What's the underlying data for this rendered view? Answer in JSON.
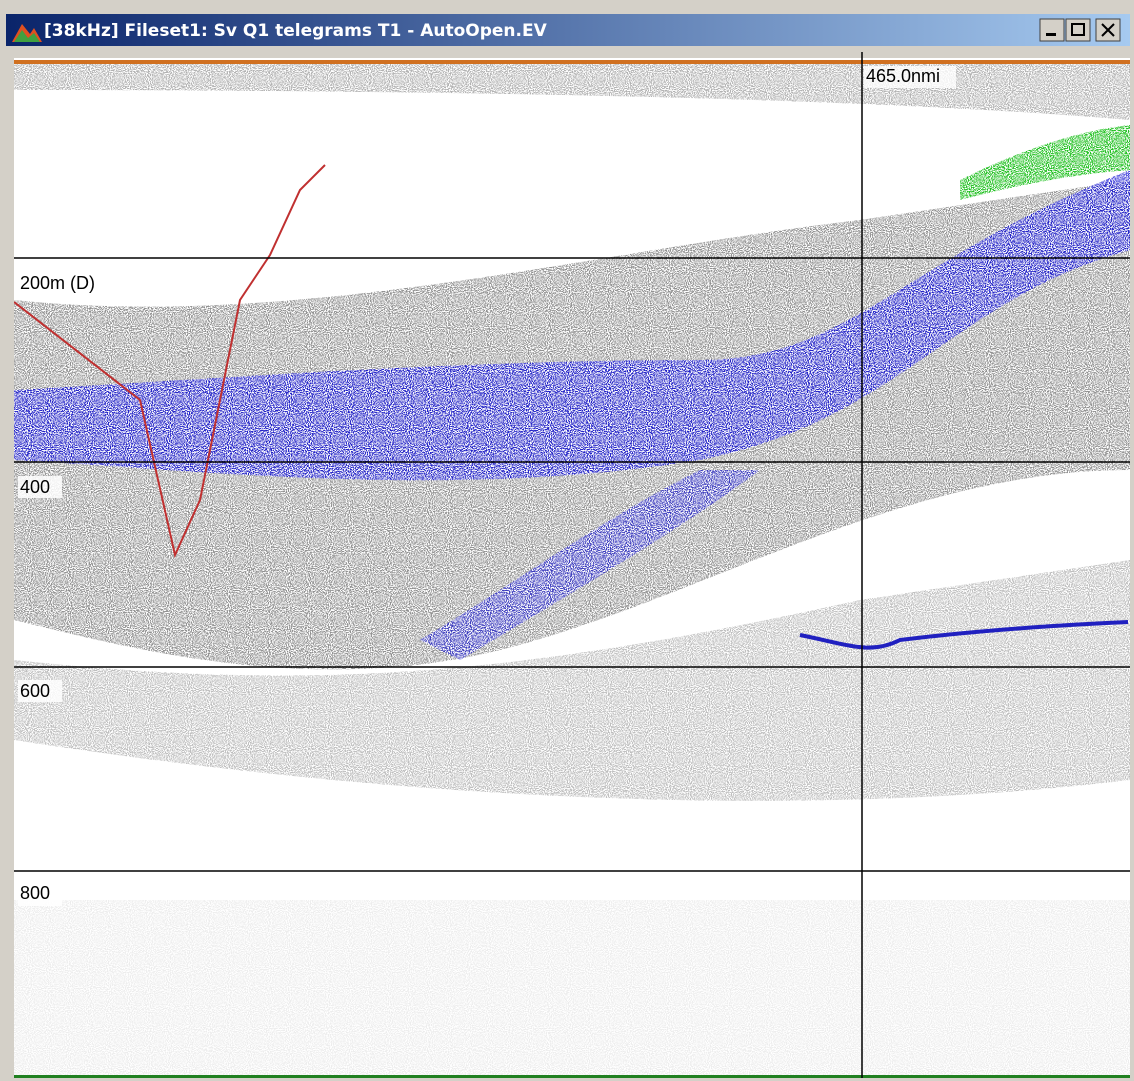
{
  "window": {
    "title": "[38kHz] Fileset1: Sv Q1 telegrams T1 - AutoOpen.EV"
  },
  "echogram": {
    "depth_labels": [
      "200m (D)",
      "400",
      "600",
      "800"
    ],
    "distance_label": "465.0nmi"
  }
}
